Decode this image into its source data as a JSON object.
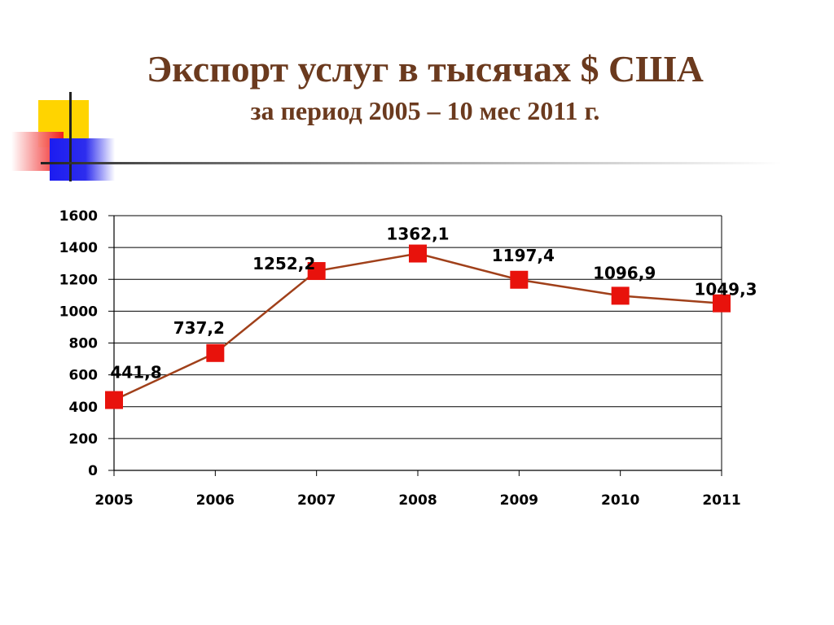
{
  "slide": {
    "title": "Экспорт услуг в тысячах $ США",
    "subtitle": "за период 2005 – 10 мес 2011 г."
  },
  "colors": {
    "title": "#6b3a1e",
    "line": "#a0401a",
    "marker": "#e8120c",
    "grid": "#000000"
  },
  "chart_data": {
    "type": "line",
    "title": "",
    "xlabel": "",
    "ylabel": "",
    "categories": [
      "2005",
      "2006",
      "2007",
      "2008",
      "2009",
      "2010",
      "2011"
    ],
    "series": [
      {
        "values": [
          441.8,
          737.2,
          1252.2,
          1362.1,
          1197.4,
          1096.9,
          1049.3
        ],
        "labels": [
          "441,8",
          "737,2",
          "1252,2",
          "1362,1",
          "1197,4",
          "1096,9",
          "1049,3"
        ]
      }
    ],
    "ylim": [
      0,
      1600
    ],
    "yticks": [
      0,
      200,
      400,
      600,
      800,
      1000,
      1200,
      1400,
      1600
    ],
    "grid": true,
    "legend": "none",
    "marker": "square"
  }
}
